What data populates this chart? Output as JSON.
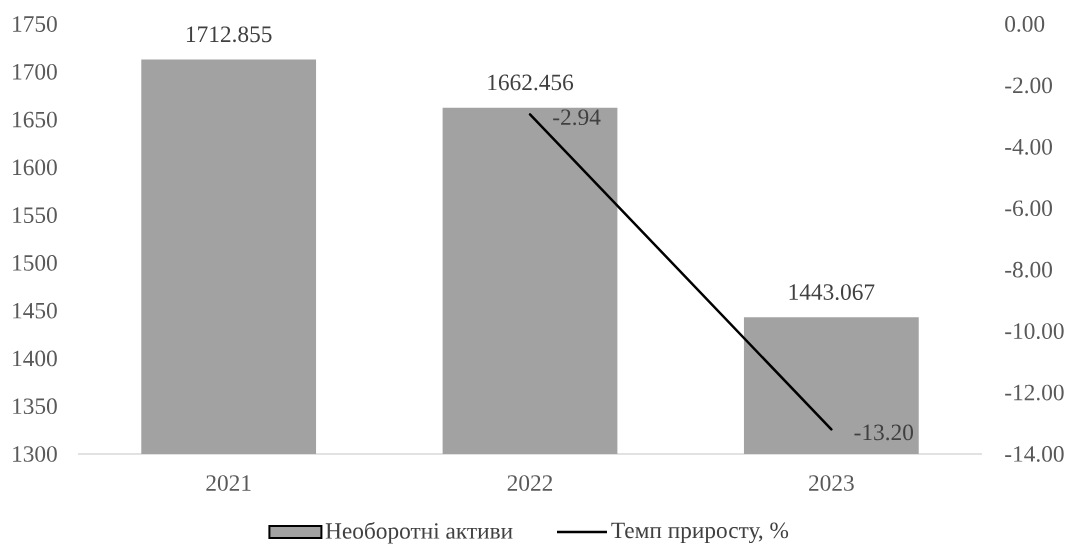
{
  "chart_data": {
    "type": "bar",
    "categories": [
      "2021",
      "2022",
      "2023"
    ],
    "series": [
      {
        "name": "Необоротні активи",
        "color": "#a2a2a2",
        "values": [
          1712.855,
          1662.456,
          1443.067
        ],
        "value_labels": [
          "1712.855",
          "1662.456",
          "1443.067"
        ]
      },
      {
        "name": "Темп приросту, %",
        "type": "line",
        "axis": "y2",
        "color": "#000000",
        "values": [
          null,
          -2.94,
          -13.2
        ],
        "value_labels": [
          null,
          "-2.94",
          "-13.20"
        ]
      }
    ],
    "ylim": [
      1300,
      1750
    ],
    "yticks": [
      1300,
      1350,
      1400,
      1450,
      1500,
      1550,
      1600,
      1650,
      1700,
      1750
    ],
    "y2lim": [
      -14,
      0
    ],
    "y2ticks": [
      {
        "value": -14,
        "label": "-14.00"
      },
      {
        "value": -12,
        "label": "-12.00"
      },
      {
        "value": -10,
        "label": "-10.00"
      },
      {
        "value": -8,
        "label": "-8.00"
      },
      {
        "value": -6,
        "label": "-6.00"
      },
      {
        "value": -4,
        "label": "-4.00"
      },
      {
        "value": -2,
        "label": "-2.00"
      },
      {
        "value": 0,
        "label": "0.00"
      }
    ],
    "legend": "bottom"
  }
}
